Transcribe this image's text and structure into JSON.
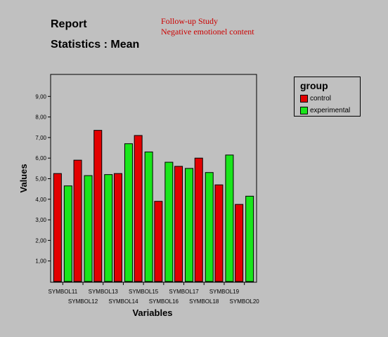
{
  "report_title": "Report",
  "statistics_title": "Statistics : Mean",
  "notes": [
    "Follow-up Study",
    "Negative emotionel content"
  ],
  "chart_data": {
    "type": "bar",
    "categories": [
      "SYMBOL11",
      "SYMBOL12",
      "SYMBOL13",
      "SYMBOL14",
      "SYMBOL15",
      "SYMBOL16",
      "SYMBOL17",
      "SYMBOL18",
      "SYMBOL19",
      "SYMBOL20"
    ],
    "series": [
      {
        "name": "control",
        "color": "#e30000",
        "values": [
          5.25,
          5.9,
          7.35,
          5.25,
          7.1,
          3.9,
          5.6,
          6.0,
          4.7,
          3.75
        ]
      },
      {
        "name": "experimental",
        "color": "#19e61b",
        "values": [
          4.65,
          5.15,
          5.2,
          6.7,
          6.3,
          5.8,
          5.5,
          5.3,
          6.15,
          4.15
        ]
      }
    ],
    "xlabel": "Variables",
    "ylabel": "Values",
    "ylim": [
      0,
      10
    ],
    "yticks": [
      "1,00",
      "2,00",
      "3,00",
      "4,00",
      "5,00",
      "6,00",
      "7,00",
      "8,00",
      "9,00"
    ],
    "grid": false,
    "legend": {
      "title": "group",
      "position": "top-right"
    }
  }
}
